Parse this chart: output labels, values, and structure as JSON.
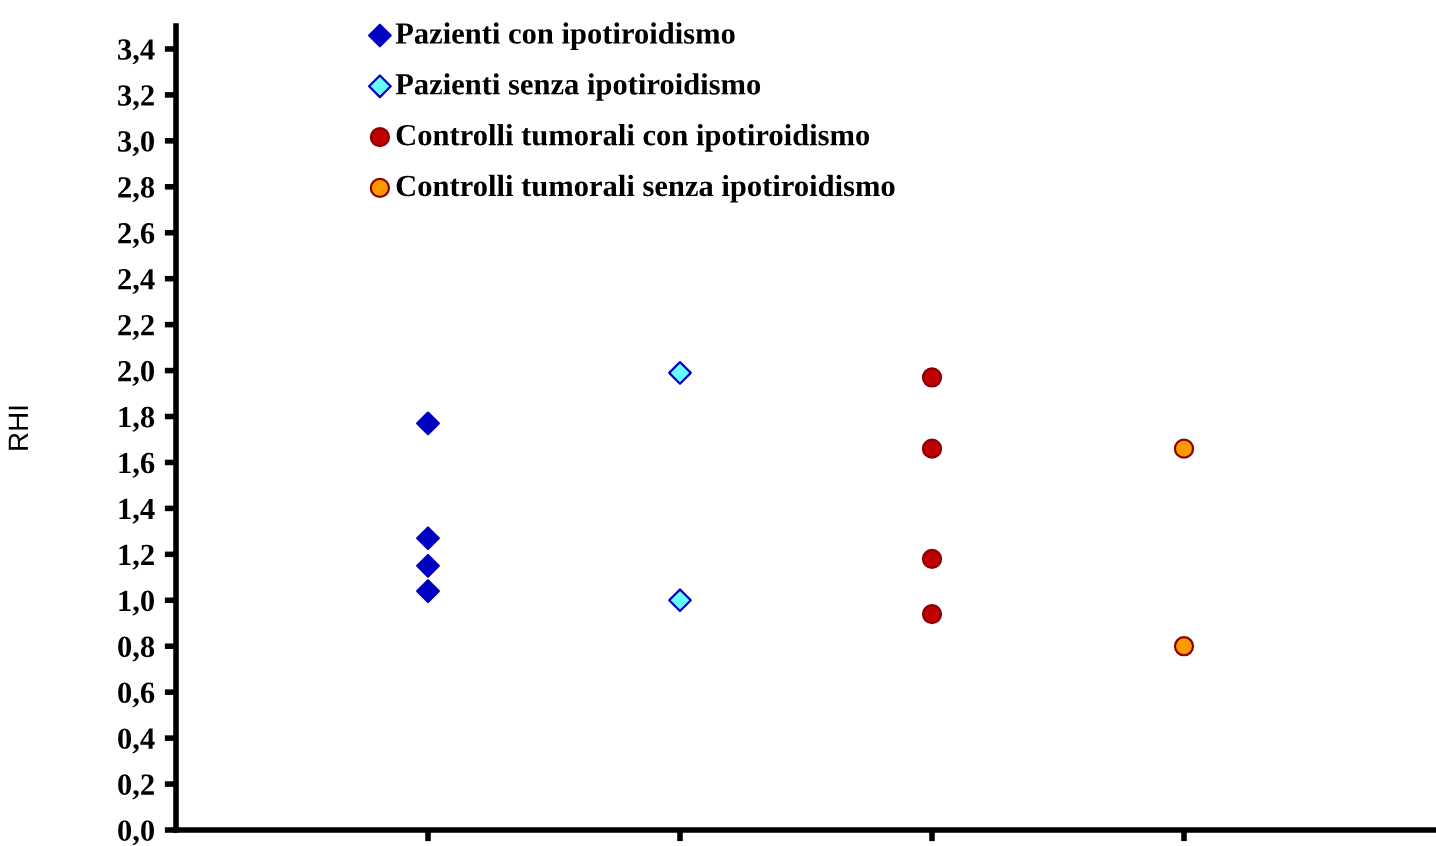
{
  "chart_data": {
    "type": "scatter",
    "ylabel": "RHI",
    "categories": [
      null,
      null,
      null,
      null
    ],
    "ylim": [
      0,
      3.5
    ],
    "yticks": [
      {
        "value": 0,
        "label": "0,0"
      },
      {
        "value": 0.2,
        "label": "0,2"
      },
      {
        "value": 0.4,
        "label": "0,4"
      },
      {
        "value": 0.6,
        "label": "0,6"
      },
      {
        "value": 0.8,
        "label": "0,8"
      },
      {
        "value": 1.0,
        "label": "1,0"
      },
      {
        "value": 1.2,
        "label": "1,2"
      },
      {
        "value": 1.4,
        "label": "1,4"
      },
      {
        "value": 1.6,
        "label": "1,6"
      },
      {
        "value": 1.8,
        "label": "1,8"
      },
      {
        "value": 2.0,
        "label": "2,0"
      },
      {
        "value": 2.2,
        "label": "2,2"
      },
      {
        "value": 2.4,
        "label": "2,4"
      },
      {
        "value": 2.6,
        "label": "2,6"
      },
      {
        "value": 2.8,
        "label": "2,8"
      },
      {
        "value": 3.0,
        "label": "3,0"
      },
      {
        "value": 3.2,
        "label": "3,2"
      },
      {
        "value": 3.4,
        "label": "3,4"
      }
    ],
    "tick_labels": "y",
    "grid": false,
    "legend": "top",
    "series": [
      {
        "name": "Pazienti con ipotiroidismo",
        "color": "#0000c0",
        "marker": "diamond",
        "values": [
          1.77,
          null,
          null,
          null
        ]
      },
      {
        "name": "Pazienti senza ipotiroidismo",
        "color": "#66ffff",
        "marker": "diamond",
        "values": [
          null,
          1.99,
          null,
          null
        ]
      },
      {
        "name": "Controlli tumorali con ipotiroidismo",
        "color": "#c00000",
        "marker": "circle",
        "values": [
          null,
          null,
          1.97,
          null
        ]
      },
      {
        "name": "Controlli tumorali senza ipotiroidismo",
        "color": "#ff9900",
        "marker": "circle",
        "values": [
          null,
          null,
          null,
          1.66
        ]
      },
      {
        "color": "#0000c0",
        "marker": "diamond",
        "values": [
          1.27,
          null,
          null,
          null
        ]
      },
      {
        "color": "#0000c0",
        "marker": "diamond",
        "values": [
          1.15,
          null,
          null,
          null
        ]
      },
      {
        "color": "#0000c0",
        "marker": "diamond",
        "values": [
          1.04,
          null,
          null,
          null
        ]
      },
      {
        "color": "#66ffff",
        "marker": "diamond",
        "values": [
          null,
          1.0,
          null,
          null
        ]
      },
      {
        "color": "#c00000",
        "marker": "circle",
        "values": [
          null,
          null,
          1.66,
          null
        ]
      },
      {
        "color": "#c00000",
        "marker": "circle",
        "values": [
          null,
          null,
          1.18,
          null
        ]
      },
      {
        "color": "#c00000",
        "marker": "circle",
        "values": [
          null,
          null,
          0.94,
          null
        ]
      },
      {
        "color": "#ff9900",
        "marker": "circle",
        "values": [
          null,
          null,
          null,
          0.8
        ]
      }
    ]
  }
}
